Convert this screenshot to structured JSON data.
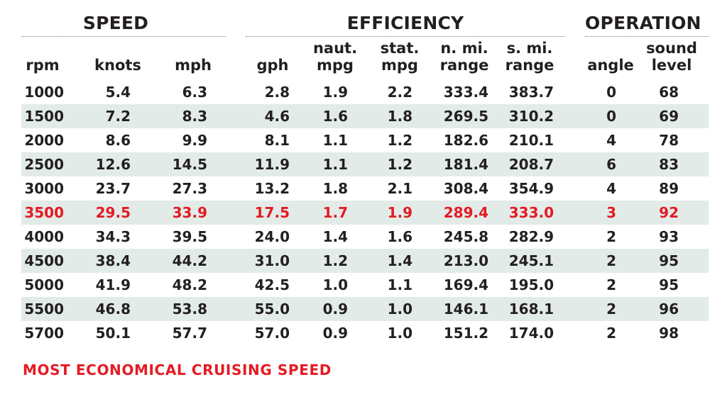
{
  "groups": [
    {
      "id": "speed",
      "label": "SPEED"
    },
    {
      "id": "efficiency",
      "label": "EFFICIENCY"
    },
    {
      "id": "operation",
      "label": "OPERATION"
    }
  ],
  "columns": [
    {
      "key": "rpm",
      "label": "rpm"
    },
    {
      "key": "knots",
      "label": "knots"
    },
    {
      "key": "mph",
      "label": "mph"
    },
    {
      "key": "gph",
      "label": "gph"
    },
    {
      "key": "naut_mpg",
      "label": "naut.\nmpg"
    },
    {
      "key": "stat_mpg",
      "label": "stat.\nmpg"
    },
    {
      "key": "n_mi_range",
      "label": "n. mi.\nrange"
    },
    {
      "key": "s_mi_range",
      "label": "s. mi.\nrange"
    },
    {
      "key": "angle",
      "label": "angle"
    },
    {
      "key": "sound_level",
      "label": "sound\nlevel"
    }
  ],
  "rows": [
    [
      "1000",
      "5.4",
      "6.3",
      "2.8",
      "1.9",
      "2.2",
      "333.4",
      "383.7",
      "0",
      "68"
    ],
    [
      "1500",
      "7.2",
      "8.3",
      "4.6",
      "1.6",
      "1.8",
      "269.5",
      "310.2",
      "0",
      "69"
    ],
    [
      "2000",
      "8.6",
      "9.9",
      "8.1",
      "1.1",
      "1.2",
      "182.6",
      "210.1",
      "4",
      "78"
    ],
    [
      "2500",
      "12.6",
      "14.5",
      "11.9",
      "1.1",
      "1.2",
      "181.4",
      "208.7",
      "6",
      "83"
    ],
    [
      "3000",
      "23.7",
      "27.3",
      "13.2",
      "1.8",
      "2.1",
      "308.4",
      "354.9",
      "4",
      "89"
    ],
    [
      "3500",
      "29.5",
      "33.9",
      "17.5",
      "1.7",
      "1.9",
      "289.4",
      "333.0",
      "3",
      "92"
    ],
    [
      "4000",
      "34.3",
      "39.5",
      "24.0",
      "1.4",
      "1.6",
      "245.8",
      "282.9",
      "2",
      "93"
    ],
    [
      "4500",
      "38.4",
      "44.2",
      "31.0",
      "1.2",
      "1.4",
      "213.0",
      "245.1",
      "2",
      "95"
    ],
    [
      "5000",
      "41.9",
      "48.2",
      "42.5",
      "1.0",
      "1.1",
      "169.4",
      "195.0",
      "2",
      "95"
    ],
    [
      "5500",
      "46.8",
      "53.8",
      "55.0",
      "0.9",
      "1.0",
      "146.1",
      "168.1",
      "2",
      "96"
    ],
    [
      "5700",
      "50.1",
      "57.7",
      "57.0",
      "0.9",
      "1.0",
      "151.2",
      "174.0",
      "2",
      "98"
    ]
  ],
  "highlight_row": 5,
  "footnote": "MOST ECONOMICAL CRUISING SPEED",
  "colors": {
    "highlight": "#e31b23",
    "stripe": "#e3ebe8",
    "text": "#231f20"
  }
}
